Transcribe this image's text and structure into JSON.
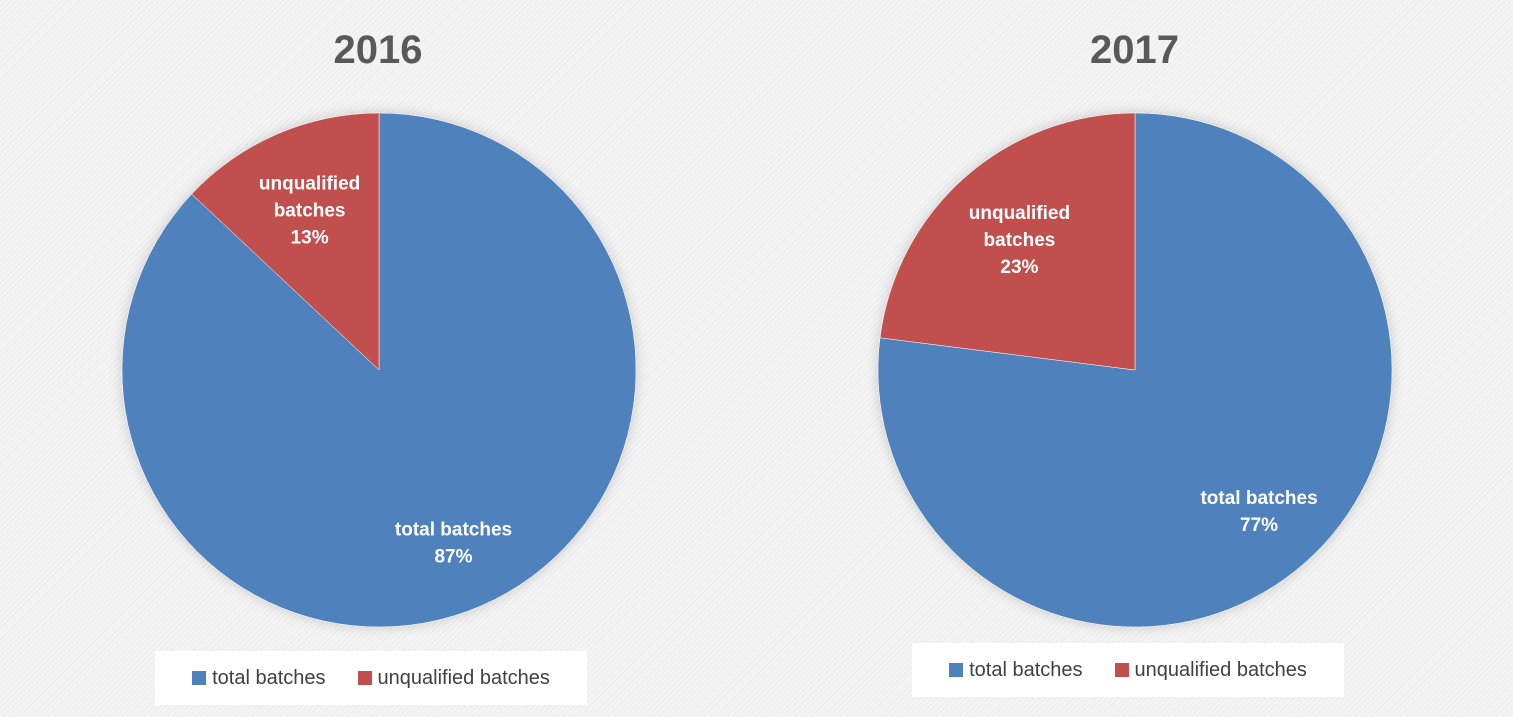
{
  "colors": {
    "total": "#4f81bd",
    "unqualified": "#c0504d"
  },
  "chart_data": [
    {
      "type": "pie",
      "title": "2016",
      "categories": [
        "total batches",
        "unqualified batches"
      ],
      "values": [
        87,
        13
      ],
      "data_labels": [
        "87%",
        "13%"
      ],
      "legend": [
        "total batches",
        "unqualified batches"
      ],
      "legend_position": "bottom"
    },
    {
      "type": "pie",
      "title": "2017",
      "categories": [
        "total batches",
        "unqualified batches"
      ],
      "values": [
        77,
        23
      ],
      "data_labels": [
        "77%",
        "23%"
      ],
      "legend": [
        "total batches",
        "unqualified batches"
      ],
      "legend_position": "bottom"
    }
  ]
}
